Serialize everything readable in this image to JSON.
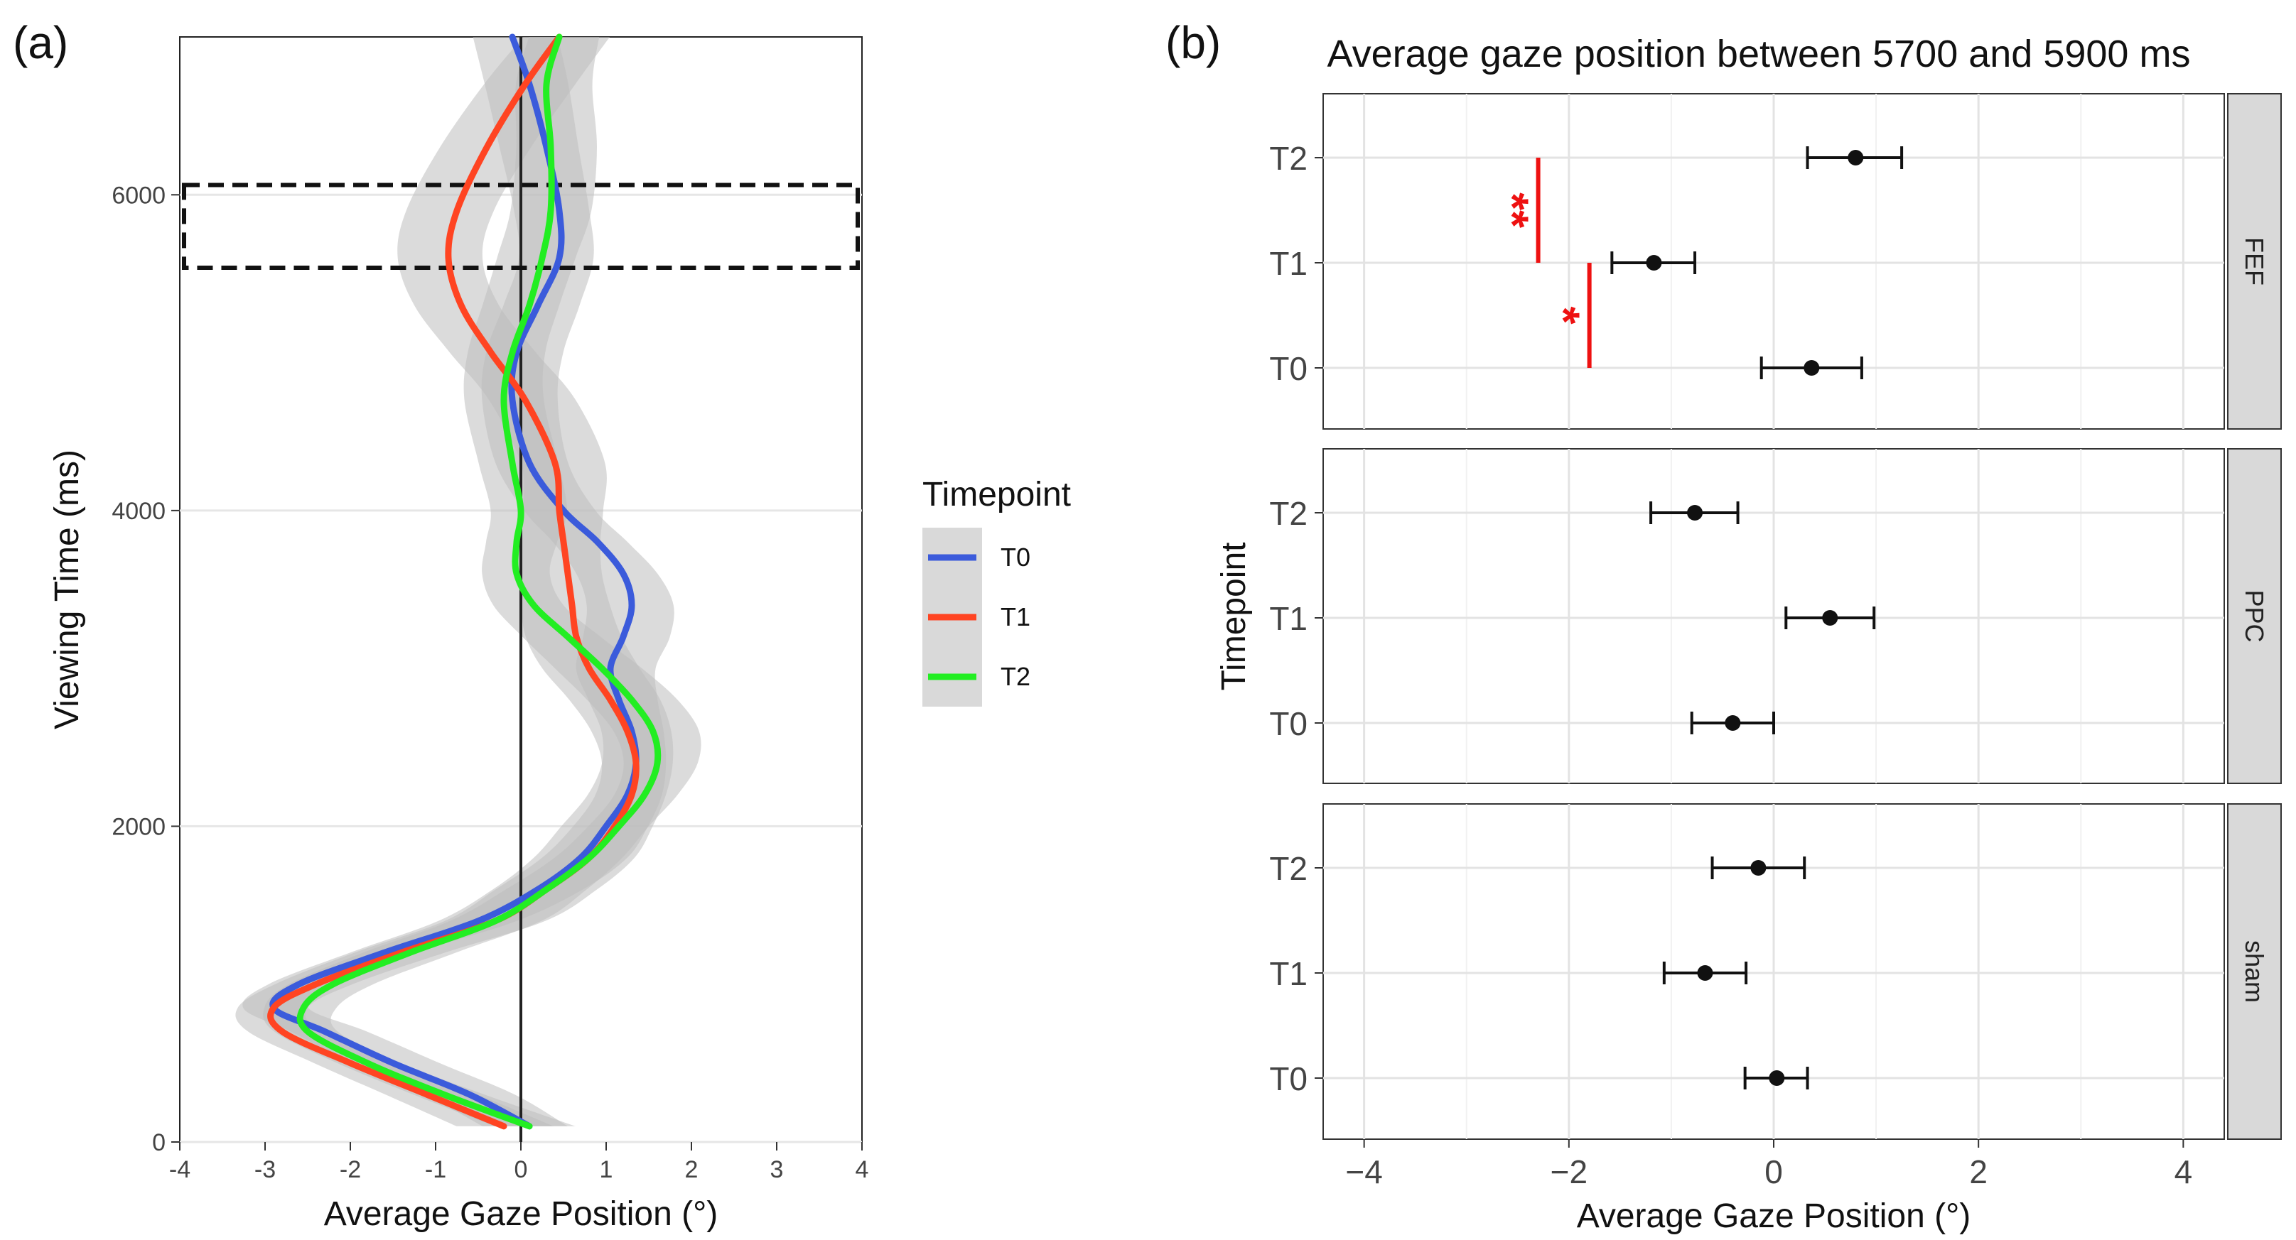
{
  "figure": {
    "panel_a_label": "(a)",
    "panel_b_label": "(b)"
  },
  "chart_data": [
    {
      "type": "line",
      "panel": "(a)",
      "xlabel": "Average Gaze Position (°)",
      "ylabel": "Viewing Time (ms)",
      "xlim": [
        -4,
        4
      ],
      "ylim": [
        0,
        7000
      ],
      "x_ticks": [
        "-4",
        "-3",
        "-2",
        "-1",
        "0",
        "1",
        "2",
        "3",
        "4"
      ],
      "y_ticks": [
        "0",
        "2000",
        "4000",
        "6000"
      ],
      "grid": true,
      "reference_line_x": 0,
      "highlight_band": {
        "y_from": 5700,
        "y_to": 5900
      },
      "legend": {
        "title": "Timepoint",
        "position": "right"
      },
      "colors": {
        "T0": "#3b5bdb",
        "T1": "#ff4422",
        "T2": "#22ee22",
        "ribbon": "#bdbdbd"
      },
      "series": [
        {
          "name": "T0",
          "x": [
            0.1,
            -0.6,
            -1.5,
            -2.3,
            -2.9,
            -2.6,
            -1.6,
            -0.5,
            0.2,
            0.7,
            1.0,
            1.25,
            1.35,
            1.3,
            1.15,
            1.05,
            1.2,
            1.3,
            1.2,
            0.9,
            0.5,
            0.1,
            -0.1,
            -0.05,
            0.2,
            0.45,
            0.45,
            0.3,
            0.1,
            -0.1
          ],
          "y": [
            100,
            300,
            500,
            700,
            850,
            1000,
            1200,
            1400,
            1600,
            1800,
            2000,
            2200,
            2400,
            2600,
            2800,
            3000,
            3200,
            3400,
            3600,
            3800,
            4000,
            4300,
            4700,
            5000,
            5300,
            5600,
            5900,
            6300,
            6700,
            7000
          ]
        },
        {
          "name": "T1",
          "x": [
            -0.2,
            -1.1,
            -2.0,
            -2.8,
            -2.9,
            -2.4,
            -1.4,
            -0.3,
            0.3,
            0.8,
            1.1,
            1.3,
            1.35,
            1.25,
            1.05,
            0.8,
            0.65,
            0.6,
            0.55,
            0.5,
            0.45,
            0.4,
            0.05,
            -0.35,
            -0.7,
            -0.85,
            -0.75,
            -0.4,
            0.05,
            0.45
          ],
          "y": [
            100,
            300,
            500,
            700,
            850,
            1000,
            1200,
            1400,
            1600,
            1800,
            2000,
            2200,
            2400,
            2600,
            2800,
            3000,
            3200,
            3400,
            3600,
            3800,
            4000,
            4300,
            4700,
            5000,
            5300,
            5600,
            5900,
            6300,
            6700,
            7000
          ]
        },
        {
          "name": "T2",
          "x": [
            0.1,
            -0.9,
            -1.8,
            -2.5,
            -2.55,
            -2.2,
            -1.3,
            -0.3,
            0.3,
            0.8,
            1.15,
            1.45,
            1.6,
            1.55,
            1.3,
            0.95,
            0.55,
            0.15,
            -0.05,
            -0.05,
            0.0,
            -0.1,
            -0.2,
            -0.1,
            0.1,
            0.25,
            0.35,
            0.35,
            0.3,
            0.45
          ],
          "y": [
            100,
            300,
            500,
            700,
            850,
            1000,
            1200,
            1400,
            1600,
            1800,
            2000,
            2200,
            2400,
            2600,
            2800,
            3000,
            3200,
            3400,
            3600,
            3800,
            4000,
            4300,
            4700,
            5000,
            5300,
            5600,
            5900,
            6300,
            6700,
            7000
          ]
        }
      ]
    },
    {
      "type": "scatter",
      "panel": "(b)",
      "title": "Average gaze position between 5700 and 5900 ms",
      "xlabel": "Average Gaze Position (°)",
      "ylabel": "Timepoint",
      "xlim": [
        -4.4,
        4.4
      ],
      "x_ticks": [
        -4,
        -2,
        0,
        2,
        4
      ],
      "x_tick_labels": [
        "−4",
        "−2",
        "0",
        "2",
        "4"
      ],
      "categories": [
        "T0",
        "T1",
        "T2"
      ],
      "grid": true,
      "facets": [
        {
          "name": "FEF",
          "points": [
            {
              "timepoint": "T2",
              "mean": 0.8,
              "lo": 0.33,
              "hi": 1.25
            },
            {
              "timepoint": "T1",
              "mean": -1.17,
              "lo": -1.58,
              "hi": -0.77
            },
            {
              "timepoint": "T0",
              "mean": 0.37,
              "lo": -0.12,
              "hi": 0.86
            }
          ],
          "annotations": [
            {
              "label": "**",
              "between": [
                "T1",
                "T2"
              ],
              "x": -2.3
            },
            {
              "label": "*",
              "between": [
                "T0",
                "T1"
              ],
              "x": -1.8
            }
          ]
        },
        {
          "name": "PPC",
          "points": [
            {
              "timepoint": "T2",
              "mean": -0.77,
              "lo": -1.2,
              "hi": -0.35
            },
            {
              "timepoint": "T1",
              "mean": 0.55,
              "lo": 0.12,
              "hi": 0.98
            },
            {
              "timepoint": "T0",
              "mean": -0.4,
              "lo": -0.8,
              "hi": 0.0
            }
          ],
          "annotations": []
        },
        {
          "name": "sham",
          "points": [
            {
              "timepoint": "T2",
              "mean": -0.15,
              "lo": -0.6,
              "hi": 0.3
            },
            {
              "timepoint": "T1",
              "mean": -0.67,
              "lo": -1.07,
              "hi": -0.27
            },
            {
              "timepoint": "T0",
              "mean": 0.03,
              "lo": -0.28,
              "hi": 0.33
            }
          ],
          "annotations": []
        }
      ],
      "colors": {
        "point": "#111111",
        "annotation": "#ee1111",
        "strip": "#d9d9d9"
      }
    }
  ]
}
